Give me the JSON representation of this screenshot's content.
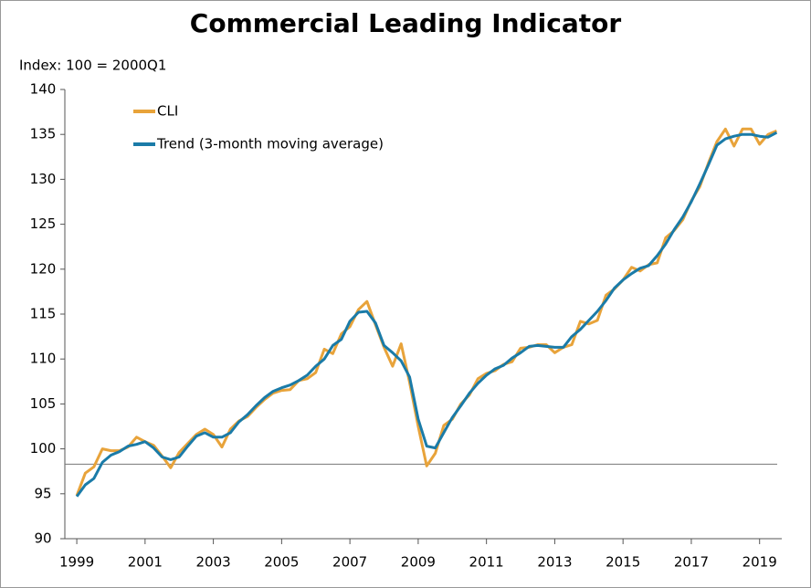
{
  "chart_data": {
    "type": "line",
    "title": "Commercial Leading Indicator",
    "y_label": "Index: 100 = 2000Q1",
    "x": [
      1999,
      1999.25,
      1999.5,
      1999.75,
      2000,
      2000.25,
      2000.5,
      2000.75,
      2001,
      2001.25,
      2001.5,
      2001.75,
      2002,
      2002.25,
      2002.5,
      2002.75,
      2003,
      2003.25,
      2003.5,
      2003.75,
      2004,
      2004.25,
      2004.5,
      2004.75,
      2005,
      2005.25,
      2005.5,
      2005.75,
      2006,
      2006.25,
      2006.5,
      2006.75,
      2007,
      2007.25,
      2007.5,
      2007.75,
      2008,
      2008.25,
      2008.5,
      2008.75,
      2009,
      2009.25,
      2009.5,
      2009.75,
      2010,
      2010.25,
      2010.5,
      2010.75,
      2011,
      2011.25,
      2011.5,
      2011.75,
      2012,
      2012.25,
      2012.5,
      2012.75,
      2013,
      2013.25,
      2013.5,
      2013.75,
      2014,
      2014.25,
      2014.5,
      2014.75,
      2015,
      2015.25,
      2015.5,
      2015.75,
      2016,
      2016.25,
      2016.5,
      2016.75,
      2017,
      2017.25,
      2017.5,
      2017.75,
      2018,
      2018.25,
      2018.5,
      2018.75,
      2019,
      2019.25,
      2019.5
    ],
    "series": [
      {
        "name": "CLI",
        "color": "#e8a33a",
        "values": [
          94.8,
          97.3,
          98.0,
          100.0,
          99.8,
          99.8,
          100.2,
          101.3,
          100.8,
          100.4,
          99.2,
          97.9,
          99.6,
          100.6,
          101.6,
          102.2,
          101.6,
          100.2,
          102.2,
          103.1,
          103.6,
          104.6,
          105.5,
          106.2,
          106.5,
          106.6,
          107.6,
          107.8,
          108.5,
          111.1,
          110.6,
          112.8,
          113.6,
          115.5,
          116.4,
          113.8,
          111.3,
          109.2,
          111.7,
          107.4,
          102.5,
          98.1,
          99.5,
          102.6,
          103.3,
          105.0,
          106.0,
          107.8,
          108.4,
          108.7,
          109.4,
          109.7,
          111.2,
          111.3,
          111.6,
          111.6,
          110.7,
          111.3,
          111.6,
          114.2,
          113.9,
          114.3,
          117.1,
          117.8,
          118.8,
          120.2,
          119.8,
          120.5,
          120.7,
          123.5,
          124.3,
          125.5,
          127.6,
          129.2,
          131.8,
          134.2,
          135.6,
          133.7,
          135.6,
          135.6,
          133.9,
          135.0,
          135.4
        ]
      },
      {
        "name": "Trend (3-month moving average)",
        "color": "#1a7ba8",
        "values": [
          94.7,
          96.0,
          96.7,
          98.5,
          99.3,
          99.7,
          100.3,
          100.5,
          100.8,
          100.1,
          99.1,
          98.8,
          99.1,
          100.3,
          101.4,
          101.8,
          101.3,
          101.3,
          101.8,
          103.0,
          103.8,
          104.8,
          105.7,
          106.4,
          106.8,
          107.1,
          107.6,
          108.2,
          109.2,
          110.0,
          111.5,
          112.2,
          114.2,
          115.2,
          115.3,
          114.0,
          111.5,
          110.7,
          109.8,
          108.0,
          103.3,
          100.3,
          100.1,
          101.8,
          103.5,
          104.8,
          106.2,
          107.3,
          108.2,
          108.9,
          109.3,
          110.1,
          110.7,
          111.4,
          111.5,
          111.4,
          111.3,
          111.3,
          112.5,
          113.3,
          114.3,
          115.3,
          116.5,
          117.9,
          118.8,
          119.5,
          120.1,
          120.4,
          121.5,
          122.8,
          124.4,
          125.8,
          127.5,
          129.5,
          131.6,
          133.8,
          134.5,
          134.8,
          135.0,
          135.0,
          134.8,
          134.7,
          135.2
        ]
      }
    ],
    "hline": 98.3,
    "xlim": [
      1998.65,
      2019.65
    ],
    "xticks": [
      1999,
      2001,
      2003,
      2005,
      2007,
      2009,
      2011,
      2013,
      2015,
      2017,
      2019
    ],
    "ylim": [
      90,
      140
    ],
    "yticks": [
      90,
      95,
      100,
      105,
      110,
      115,
      120,
      125,
      130,
      135,
      140
    ],
    "legend": "upper left",
    "grid": false
  }
}
